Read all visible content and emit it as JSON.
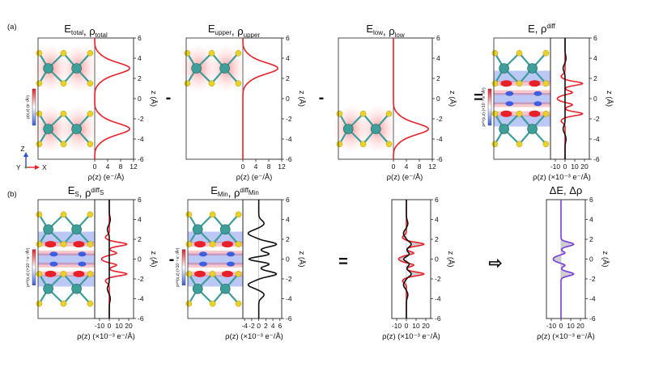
{
  "figure": {
    "row_a_label": "(a)",
    "row_b_label": "(b)",
    "minus_sign": "-",
    "equals_sign": "=",
    "arrow_glyph": "⇨",
    "axes_triad": {
      "x": "X",
      "y": "Y",
      "z": "Z"
    },
    "colors": {
      "red_curve": "#e8202a",
      "black_curve": "#111111",
      "purple_curve": "#7a3ce0",
      "mo_atom": "#3d9e9a",
      "s_atom": "#e8d12a",
      "bond": "#3d9e9a",
      "density_pos": "#e8202a",
      "density_neg": "#3c5ee0",
      "shaded_area": "#c6c6c6"
    },
    "ticks": {
      "z": [
        "-6",
        "-4",
        "-2",
        "0",
        "2",
        "4",
        "6"
      ],
      "rho_total": [
        "0",
        "4",
        "8",
        "12"
      ],
      "diff": [
        "-10",
        "0",
        "10",
        "20"
      ],
      "min": [
        "-4",
        "-2",
        "0",
        "2",
        "4",
        "6"
      ],
      "colorbar_left": [
        "4",
        "3",
        "2",
        "1",
        "0",
        "-1",
        "-2",
        "-3",
        "-4"
      ],
      "colorbar_b": [
        "2",
        "1",
        "0",
        "-1",
        "-2"
      ]
    }
  },
  "panels": {
    "a1": {
      "title": "E",
      "title_sub": "total",
      "title_sep": ", ",
      "title2": "ρ",
      "title2_sub": "total",
      "xlabel": "ρ(z) (e⁻/Å)",
      "zlabel": "z (Å)",
      "colorbar_label": "ρ(x,z) (e⁻/Å³)"
    },
    "a2": {
      "title": "E",
      "title_sub": "upper",
      "title_sep": ", ",
      "title2": "ρ",
      "title2_sub": "upper",
      "xlabel": "ρ(z) (e⁻/Å)",
      "zlabel": "z (Å)"
    },
    "a3": {
      "title": "E",
      "title_sub": "low",
      "title_sep": ", ",
      "title2": "ρ",
      "title2_sub": "low",
      "xlabel": "ρ(z) (e⁻/Å)",
      "zlabel": "z (Å)"
    },
    "a4": {
      "title": "E, ρ",
      "title_sup": "diff",
      "xlabel": "ρ(z) (×10⁻³ e⁻/Å)",
      "zlabel": "z (Å)",
      "colorbar_label": "ρᵈⁱᶠᶠ(x,z) (×10⁻³ e⁻/Å³)"
    },
    "b1": {
      "title": "E",
      "title_sub": "S",
      "title_sep": ", ",
      "title2": "ρ",
      "title2_sup": "diff",
      "title2_sub": "S",
      "xlabel": "ρ(z) (×10⁻³ e⁻/Å)",
      "zlabel": "z (Å)",
      "colorbar_label": "ρᵈⁱᶠᶠ(x,z) (×10⁻³ e⁻/Å³)"
    },
    "b2": {
      "title": "E",
      "title_sub": "Min",
      "title_sep": ", ",
      "title2": "ρ",
      "title2_sup": "diff",
      "title2_sub": "Min",
      "xlabel": "ρ(z) (×10⁻³ e⁻/Å)",
      "zlabel": "z (Å)",
      "colorbar_label": "ρᵈⁱᶠᶠ(x,z) (×10⁻³ e⁻/Å³)"
    },
    "b3": {
      "xlabel": "ρ(z) (×10⁻³ e⁻/Å)",
      "zlabel": "z (Å)"
    },
    "b4": {
      "title": "ΔE, Δρ",
      "xlabel": "ρ(z) (×10⁻³ e⁻/Å)",
      "zlabel": "z (Å)"
    }
  },
  "chart_data": [
    {
      "type": "line",
      "panel": "a1",
      "xlim": [
        0,
        12
      ],
      "ylim": [
        -6,
        6
      ],
      "series": [
        {
          "color": "#e8202a",
          "peaks": [
            {
              "z": 3.0,
              "amp": 10.5,
              "w": 0.55
            },
            {
              "z": -3.0,
              "amp": 10.5,
              "w": 0.55
            },
            {
              "z": 4.1,
              "amp": 1.6,
              "w": 0.5
            },
            {
              "z": 1.9,
              "amp": 1.6,
              "w": 0.5
            },
            {
              "z": -1.9,
              "amp": 1.6,
              "w": 0.5
            },
            {
              "z": -4.1,
              "amp": 1.6,
              "w": 0.5
            }
          ]
        }
      ]
    },
    {
      "type": "line",
      "panel": "a2",
      "xlim": [
        0,
        12
      ],
      "ylim": [
        -6,
        6
      ],
      "series": [
        {
          "color": "#e8202a",
          "peaks": [
            {
              "z": 3.0,
              "amp": 10.5,
              "w": 0.55
            },
            {
              "z": 4.1,
              "amp": 1.6,
              "w": 0.5
            },
            {
              "z": 1.9,
              "amp": 1.6,
              "w": 0.5
            }
          ]
        }
      ]
    },
    {
      "type": "line",
      "panel": "a3",
      "xlim": [
        0,
        12
      ],
      "ylim": [
        -6,
        6
      ],
      "series": [
        {
          "color": "#e8202a",
          "peaks": [
            {
              "z": -3.0,
              "amp": 10.5,
              "w": 0.55
            },
            {
              "z": -1.9,
              "amp": 1.6,
              "w": 0.5
            },
            {
              "z": -4.1,
              "amp": 1.6,
              "w": 0.5
            }
          ]
        }
      ]
    },
    {
      "type": "line",
      "panel": "a4",
      "xlim": [
        -15,
        25
      ],
      "ylim": [
        -6,
        6
      ],
      "series": [
        {
          "color": "#e8202a",
          "peaks": [
            {
              "z": 1.5,
              "amp": 18,
              "w": 0.18
            },
            {
              "z": -1.5,
              "amp": 18,
              "w": 0.18
            },
            {
              "z": 0.6,
              "amp": 8,
              "w": 0.15
            },
            {
              "z": -0.6,
              "amp": 8,
              "w": 0.15
            },
            {
              "z": 0,
              "amp": -8,
              "w": 0.25
            },
            {
              "z": 2.2,
              "amp": -4,
              "w": 0.2
            },
            {
              "z": -2.2,
              "amp": -4,
              "w": 0.2
            }
          ]
        },
        {
          "color": "#111111",
          "peaks": [
            {
              "z": 3.0,
              "amp": -2,
              "w": 0.3
            },
            {
              "z": -3.0,
              "amp": -2,
              "w": 0.3
            },
            {
              "z": 4,
              "amp": 1,
              "w": 0.3
            },
            {
              "z": -4,
              "amp": 1,
              "w": 0.3
            }
          ]
        }
      ]
    },
    {
      "type": "line",
      "panel": "b1",
      "xlim": [
        -15,
        25
      ],
      "ylim": [
        -6,
        6
      ],
      "series": [
        {
          "color": "#e8202a",
          "peaks": [
            {
              "z": 1.5,
              "amp": 18,
              "w": 0.18
            },
            {
              "z": -1.5,
              "amp": 18,
              "w": 0.18
            },
            {
              "z": 0.6,
              "amp": 8,
              "w": 0.15
            },
            {
              "z": -0.6,
              "amp": 8,
              "w": 0.15
            },
            {
              "z": 0,
              "amp": -8,
              "w": 0.25
            },
            {
              "z": 2.2,
              "amp": -4,
              "w": 0.2
            },
            {
              "z": -2.2,
              "amp": -4,
              "w": 0.2
            }
          ]
        },
        {
          "color": "#111111",
          "peaks": [
            {
              "z": 3.0,
              "amp": -2,
              "w": 0.3
            },
            {
              "z": -3.0,
              "amp": -2,
              "w": 0.3
            },
            {
              "z": 4,
              "amp": 1,
              "w": 0.3
            },
            {
              "z": -4,
              "amp": 1,
              "w": 0.3
            }
          ]
        }
      ]
    },
    {
      "type": "line",
      "panel": "b2",
      "xlim": [
        -4.5,
        6.5
      ],
      "ylim": [
        -6,
        6
      ],
      "series": [
        {
          "color": "#111111",
          "peaks": [
            {
              "z": 1.5,
              "amp": 5,
              "w": 0.25
            },
            {
              "z": -1.5,
              "amp": 5,
              "w": 0.25
            },
            {
              "z": 0.5,
              "amp": 3,
              "w": 0.2
            },
            {
              "z": -0.5,
              "amp": 3,
              "w": 0.2
            },
            {
              "z": 0,
              "amp": -3,
              "w": 0.2
            },
            {
              "z": 2.6,
              "amp": -3,
              "w": 0.3
            },
            {
              "z": -2.6,
              "amp": -3,
              "w": 0.3
            },
            {
              "z": 3.6,
              "amp": 1.5,
              "w": 0.3
            },
            {
              "z": -3.6,
              "amp": 1.5,
              "w": 0.3
            }
          ]
        }
      ]
    },
    {
      "type": "area",
      "panel": "b3",
      "xlim": [
        -15,
        25
      ],
      "ylim": [
        -6,
        6
      ],
      "series": [
        {
          "color": "#e8202a",
          "peaks": [
            {
              "z": 1.5,
              "amp": 18,
              "w": 0.18
            },
            {
              "z": -1.5,
              "amp": 18,
              "w": 0.18
            },
            {
              "z": 0.6,
              "amp": 8,
              "w": 0.15
            },
            {
              "z": -0.6,
              "amp": 8,
              "w": 0.15
            },
            {
              "z": 0,
              "amp": -8,
              "w": 0.25
            },
            {
              "z": 2.2,
              "amp": -4,
              "w": 0.2
            },
            {
              "z": -2.2,
              "amp": -4,
              "w": 0.2
            }
          ]
        },
        {
          "color": "#111111",
          "peaks": [
            {
              "z": 1.5,
              "amp": 5,
              "w": 0.25
            },
            {
              "z": -1.5,
              "amp": 5,
              "w": 0.25
            },
            {
              "z": 0.5,
              "amp": 3,
              "w": 0.2
            },
            {
              "z": -0.5,
              "amp": 3,
              "w": 0.2
            },
            {
              "z": 0,
              "amp": -3,
              "w": 0.2
            },
            {
              "z": 2.6,
              "amp": -3,
              "w": 0.3
            },
            {
              "z": -2.6,
              "amp": -3,
              "w": 0.3
            },
            {
              "z": 3.6,
              "amp": 1.5,
              "w": 0.3
            },
            {
              "z": -3.6,
              "amp": 1.5,
              "w": 0.3
            }
          ]
        }
      ]
    },
    {
      "type": "area",
      "panel": "b4",
      "xlim": [
        -15,
        25
      ],
      "ylim": [
        -6,
        6
      ],
      "series": [
        {
          "color": "#7a3ce0",
          "peaks": [
            {
              "z": 1.5,
              "amp": 13,
              "w": 0.2
            },
            {
              "z": -1.5,
              "amp": 13,
              "w": 0.2
            },
            {
              "z": 0,
              "amp": -8,
              "w": 0.3
            },
            {
              "z": 0.6,
              "amp": 5,
              "w": 0.15
            },
            {
              "z": -0.6,
              "amp": 5,
              "w": 0.15
            }
          ]
        }
      ]
    }
  ]
}
